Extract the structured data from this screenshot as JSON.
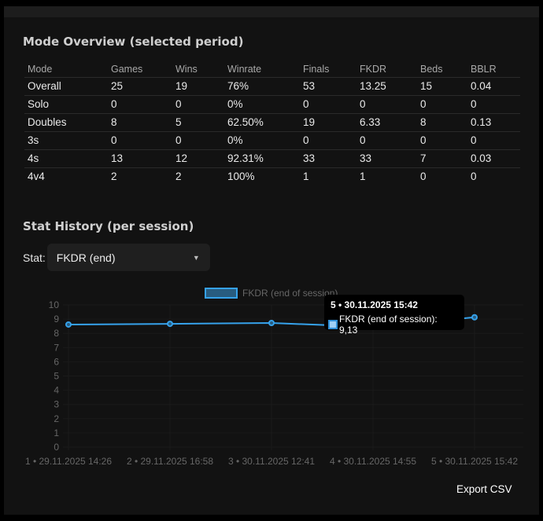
{
  "overview": {
    "title": "Mode Overview (selected period)",
    "columns": [
      "Mode",
      "Games",
      "Wins",
      "Winrate",
      "Finals",
      "FKDR",
      "Beds",
      "BBLR"
    ],
    "rows": [
      [
        "Overall",
        "25",
        "19",
        "76%",
        "53",
        "13.25",
        "15",
        "0.04"
      ],
      [
        "Solo",
        "0",
        "0",
        "0%",
        "0",
        "0",
        "0",
        "0"
      ],
      [
        "Doubles",
        "8",
        "5",
        "62.50%",
        "19",
        "6.33",
        "8",
        "0.13"
      ],
      [
        "3s",
        "0",
        "0",
        "0%",
        "0",
        "0",
        "0",
        "0"
      ],
      [
        "4s",
        "13",
        "12",
        "92.31%",
        "33",
        "33",
        "7",
        "0.03"
      ],
      [
        "4v4",
        "2",
        "2",
        "100%",
        "1",
        "1",
        "0",
        "0"
      ]
    ]
  },
  "history": {
    "title": "Stat History (per session)",
    "stat_label": "Stat:",
    "stat_selected": "FKDR (end)",
    "caret": "▼"
  },
  "tooltip": {
    "title": "5 • 30.11.2025 15:42",
    "body": "FKDR (end of session): 9,13"
  },
  "export_label": "Export CSV",
  "colors": {
    "line": "#36a2eb",
    "legend_fill": "#285c80",
    "panel_bg": "#121212",
    "axis_text": "#666666"
  },
  "chart_data": {
    "type": "line",
    "title": "",
    "legend": [
      "FKDR (end of session)"
    ],
    "legend_position": "top",
    "categories": [
      "1 • 29.11.2025 14:26",
      "2 • 29.11.2025 16:58",
      "3 • 30.11.2025 12:41",
      "4 • 30.11.2025 14:55",
      "5 • 30.11.2025 15:42"
    ],
    "series": [
      {
        "name": "FKDR (end of session)",
        "values": [
          8.62,
          8.67,
          8.73,
          8.45,
          9.13
        ]
      }
    ],
    "yticks": [
      "10",
      "9",
      "8",
      "7",
      "6",
      "5",
      "4",
      "3",
      "2",
      "1",
      "0"
    ],
    "ylim": [
      0,
      10
    ],
    "xlabel": "",
    "ylabel": "",
    "grid": true
  }
}
